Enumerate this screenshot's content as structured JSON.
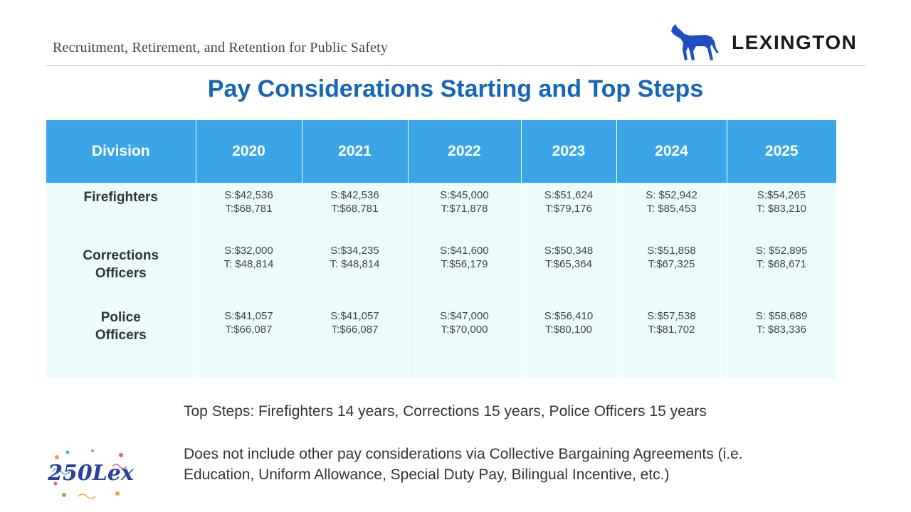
{
  "header": {
    "title": "Recruitment, Retirement, and Retention for Public Safety",
    "logo_text": "LEXINGTON",
    "logo_icon": "horse-icon"
  },
  "main_title": "Pay Considerations Starting and Top Steps",
  "table": {
    "columns": [
      "Division",
      "2020",
      "2021",
      "2022",
      "2023",
      "2024",
      "2025"
    ],
    "rows": [
      {
        "division_lines": [
          "Firefighters"
        ],
        "cells": [
          [
            "S:$42,536",
            "T:$68,781"
          ],
          [
            "S:$42,536",
            "T:$68,781"
          ],
          [
            "S:$45,000",
            "T:$71,878"
          ],
          [
            "S:$51,624",
            "T:$79,176"
          ],
          [
            "S: $52,942",
            "T: $85,453"
          ],
          [
            "S:$54,265",
            "T: $83,210"
          ]
        ]
      },
      {
        "division_lines": [
          "Corrections",
          "Officers"
        ],
        "cells": [
          [
            "S:$32,000",
            "T: $48,814"
          ],
          [
            "S:$34,235",
            "T: $48,814"
          ],
          [
            "S:$41,600",
            "T:$56,179"
          ],
          [
            "S:$50,348",
            "T:$65,364"
          ],
          [
            "S:$51,858",
            "T:$67,325"
          ],
          [
            "S: $52,895",
            "T: $68,671"
          ]
        ]
      },
      {
        "division_lines": [
          "Police",
          "Officers"
        ],
        "cells": [
          [
            "S:$41,057",
            "T:$66,087"
          ],
          [
            "S:$41,057",
            "T:$66,087"
          ],
          [
            "S:$47,000",
            "T:$70,000"
          ],
          [
            "S:$56,410",
            "T:$80,100"
          ],
          [
            "S:$57,538",
            "T:$81,702"
          ],
          [
            "S: $58,689",
            "T: $83,336"
          ]
        ]
      }
    ]
  },
  "notes": {
    "top_steps": "Top Steps: Firefighters 14 years, Corrections 15 years, Police Officers 15 years",
    "disclaimer_line1": "Does not include other pay considerations via Collective Bargaining Agreements (i.e.",
    "disclaimer_line2": "Education, Uniform Allowance, Special Duty Pay, Bilingual Incentive, etc.)"
  },
  "badge": {
    "text": "250Lex"
  },
  "colors": {
    "title_blue": "#1565b8",
    "header_blue": "#3aa6e8",
    "cell_bg": "#ecfcfc",
    "horse_blue": "#1e4fc2"
  }
}
